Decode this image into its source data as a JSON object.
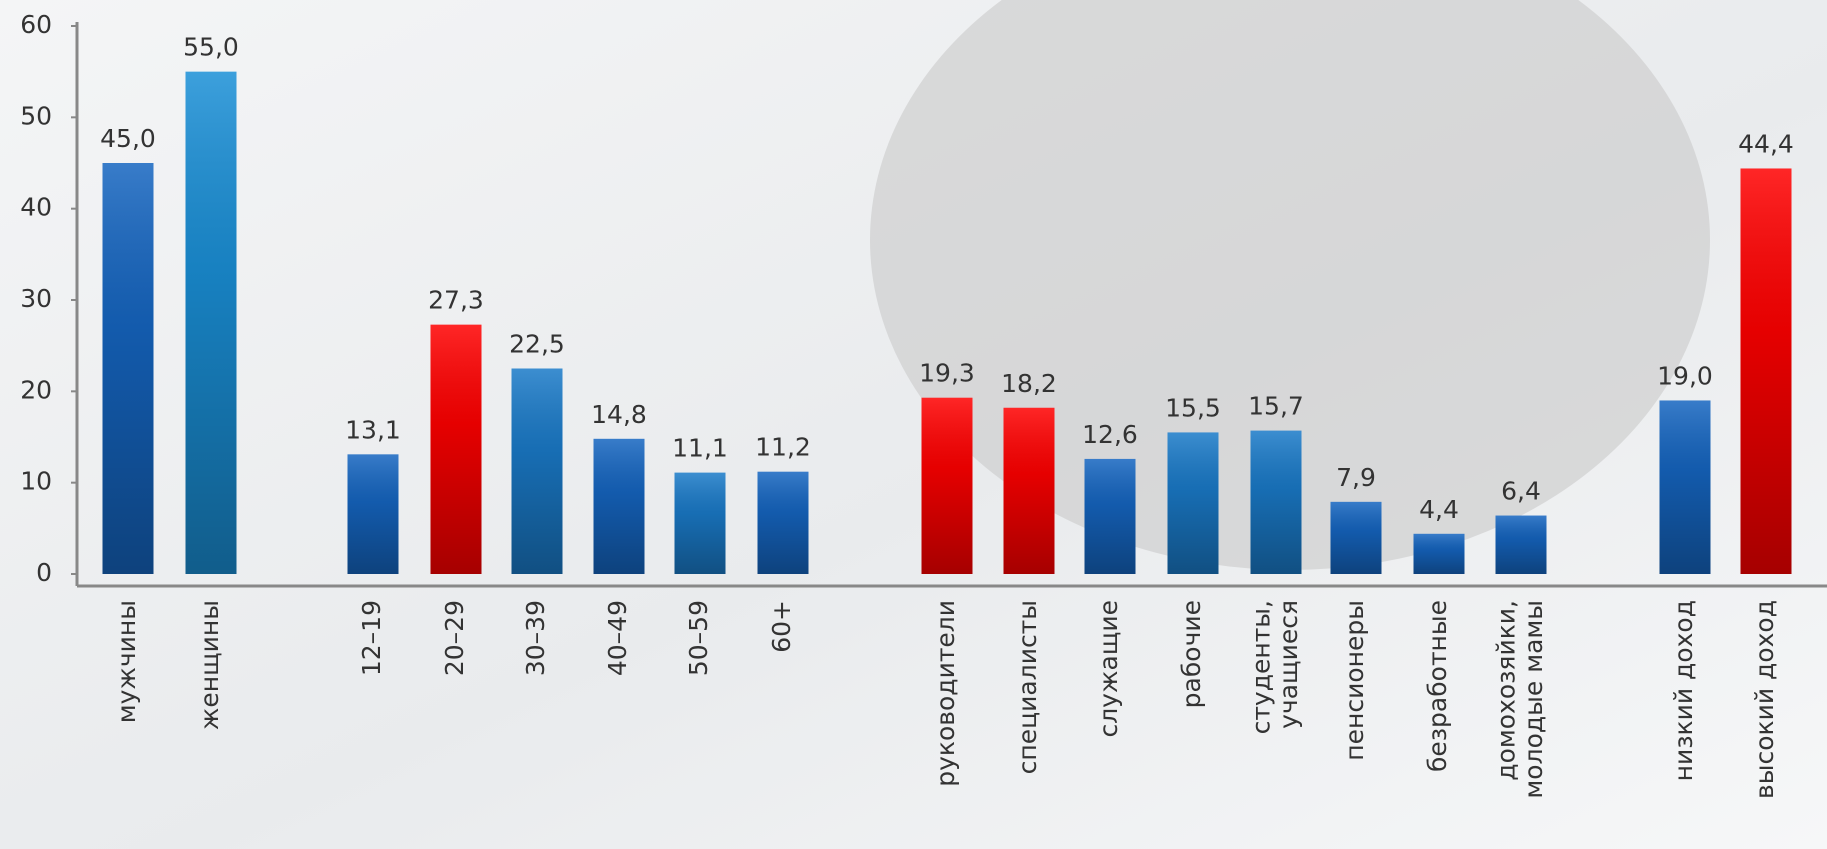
{
  "chart_data": {
    "type": "bar",
    "categories": [
      "мужчины",
      "женщины",
      "12–19",
      "20–29",
      "30–39",
      "40–49",
      "50–59",
      "60+",
      "руководители",
      "специалисты",
      "служащие",
      "рабочие",
      "студенты,\nучащиеся",
      "пенсионеры",
      "безработные",
      "домохозяйки,\nмолодые мамы",
      "низкий доход",
      "высокий доход"
    ],
    "values": [
      45.0,
      55.0,
      13.1,
      27.3,
      22.5,
      14.8,
      11.1,
      11.2,
      19.3,
      18.2,
      12.6,
      15.5,
      15.7,
      7.9,
      4.4,
      6.4,
      19.0,
      44.4
    ],
    "value_labels": [
      "45,0",
      "55,0",
      "13,1",
      "27,3",
      "22,5",
      "14,8",
      "11,1",
      "11,2",
      "19,3",
      "18,2",
      "12,6",
      "15,5",
      "15,7",
      "7,9",
      "4,4",
      "6,4",
      "19,0",
      "44,4"
    ],
    "colors": [
      "#1565c0",
      "#1a8fd6",
      "#1565c0",
      "#ff0000",
      "#1a7ac8",
      "#1565c0",
      "#1a7ac8",
      "#1565c0",
      "#ff0000",
      "#ff0000",
      "#1565c0",
      "#1a7ac8",
      "#1a7ac8",
      "#1565c0",
      "#1565c0",
      "#1565c0",
      "#1565c0",
      "#ff0000"
    ],
    "ylim": [
      0,
      60
    ],
    "yticks": [
      0,
      10,
      20,
      30,
      40,
      50,
      60
    ]
  }
}
